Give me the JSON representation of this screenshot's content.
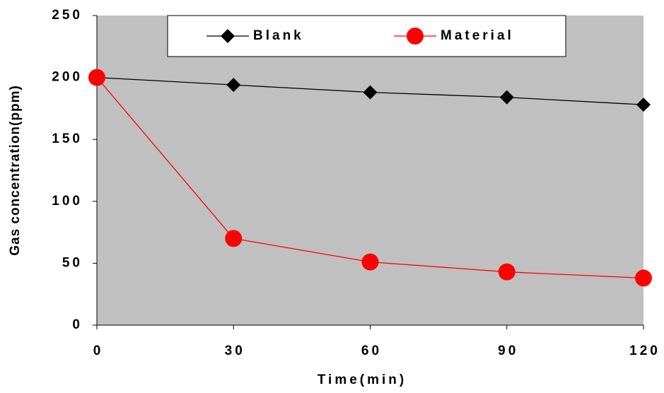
{
  "chart_data": {
    "type": "line",
    "x_label": "Time(min)",
    "y_label": "Gas concentration(ppm)",
    "x": [
      0,
      30,
      60,
      90,
      120
    ],
    "series": [
      {
        "name": "Blank",
        "color": "#000000",
        "marker": "diamond",
        "values": [
          200,
          194,
          188,
          184,
          178
        ]
      },
      {
        "name": "Material",
        "color": "#ff0000",
        "marker": "circle",
        "values": [
          200,
          70,
          51,
          43,
          38
        ]
      }
    ],
    "xlim": [
      0,
      120
    ],
    "xticks": [
      0,
      30,
      60,
      90,
      120
    ],
    "ylim": [
      0,
      250
    ],
    "yticks": [
      0,
      50,
      100,
      150,
      200,
      250
    ],
    "legend": "top",
    "plot_background": "#c0c0c0"
  }
}
